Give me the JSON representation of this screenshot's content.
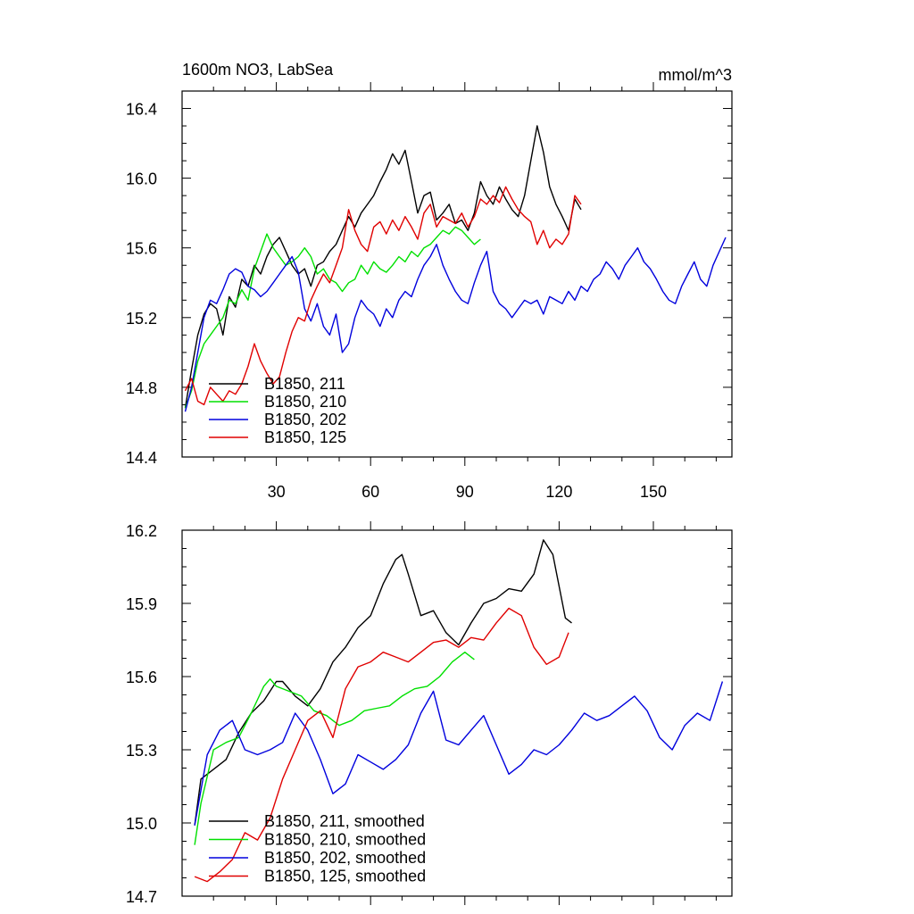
{
  "colors": {
    "b211": "#000000",
    "b210": "#00e000",
    "b202": "#0000dd",
    "b125": "#e00000"
  },
  "chart_data": [
    {
      "type": "line",
      "title_left": "1600m NO3, LabSea",
      "title_right": "mmol/m^3",
      "xlim": [
        0,
        175
      ],
      "ylim": [
        14.4,
        16.5
      ],
      "xticks": [
        30,
        60,
        90,
        120,
        150
      ],
      "xtick_labels": [
        "30",
        "60",
        "90",
        "120",
        "150"
      ],
      "yticks": [
        14.4,
        14.8,
        15.2,
        15.6,
        16.0,
        16.4
      ],
      "ytick_labels": [
        "14.4",
        "14.8",
        "15.2",
        "15.6",
        "16.0",
        "16.4"
      ],
      "legend_position": "bottom-left",
      "series": [
        {
          "name": "B1850, 211",
          "color_key": "b211",
          "x": [
            1,
            3,
            5,
            7,
            9,
            11,
            13,
            15,
            17,
            19,
            21,
            23,
            25,
            27,
            29,
            31,
            33,
            35,
            37,
            39,
            41,
            43,
            45,
            47,
            49,
            51,
            53,
            55,
            57,
            59,
            61,
            63,
            65,
            67,
            69,
            71,
            73,
            75,
            77,
            79,
            81,
            83,
            85,
            87,
            89,
            91,
            93,
            95,
            97,
            99,
            101,
            103,
            105,
            107,
            109,
            111,
            113,
            115,
            117,
            119,
            121,
            123,
            125,
            127
          ],
          "values": [
            14.68,
            14.9,
            15.1,
            15.22,
            15.28,
            15.25,
            15.1,
            15.32,
            15.26,
            15.42,
            15.38,
            15.5,
            15.45,
            15.55,
            15.62,
            15.66,
            15.58,
            15.5,
            15.45,
            15.48,
            15.38,
            15.5,
            15.52,
            15.58,
            15.62,
            15.7,
            15.78,
            15.72,
            15.8,
            15.85,
            15.9,
            15.98,
            16.05,
            16.14,
            16.08,
            16.16,
            15.98,
            15.8,
            15.9,
            15.92,
            15.76,
            15.8,
            15.85,
            15.74,
            15.76,
            15.7,
            15.8,
            15.98,
            15.9,
            15.85,
            15.95,
            15.88,
            15.82,
            15.78,
            15.9,
            16.1,
            16.3,
            16.15,
            15.95,
            15.85,
            15.78,
            15.7,
            15.88,
            15.82
          ]
        },
        {
          "name": "B1850, 210",
          "color_key": "b210",
          "x": [
            1,
            3,
            5,
            7,
            9,
            11,
            13,
            15,
            17,
            19,
            21,
            23,
            25,
            27,
            29,
            31,
            33,
            35,
            37,
            39,
            41,
            43,
            45,
            47,
            49,
            51,
            53,
            55,
            57,
            59,
            61,
            63,
            65,
            67,
            69,
            71,
            73,
            75,
            77,
            79,
            81,
            83,
            85,
            87,
            89,
            91,
            93,
            95
          ],
          "values": [
            14.68,
            14.78,
            14.95,
            15.05,
            15.1,
            15.15,
            15.2,
            15.3,
            15.28,
            15.36,
            15.3,
            15.48,
            15.58,
            15.68,
            15.6,
            15.55,
            15.5,
            15.52,
            15.55,
            15.6,
            15.55,
            15.45,
            15.48,
            15.42,
            15.4,
            15.35,
            15.4,
            15.42,
            15.5,
            15.45,
            15.52,
            15.48,
            15.46,
            15.5,
            15.55,
            15.52,
            15.58,
            15.55,
            15.6,
            15.62,
            15.66,
            15.7,
            15.68,
            15.72,
            15.7,
            15.66,
            15.62,
            15.65
          ]
        },
        {
          "name": "B1850, 202",
          "color_key": "b202",
          "x": [
            1,
            3,
            5,
            7,
            9,
            11,
            13,
            15,
            17,
            19,
            21,
            23,
            25,
            27,
            29,
            31,
            33,
            35,
            37,
            39,
            41,
            43,
            45,
            47,
            49,
            51,
            53,
            55,
            57,
            59,
            61,
            63,
            65,
            67,
            69,
            71,
            73,
            75,
            77,
            79,
            81,
            83,
            85,
            87,
            89,
            91,
            93,
            95,
            97,
            99,
            101,
            103,
            105,
            107,
            109,
            111,
            113,
            115,
            117,
            119,
            121,
            123,
            125,
            127,
            129,
            131,
            133,
            135,
            137,
            139,
            141,
            143,
            145,
            147,
            149,
            151,
            153,
            155,
            157,
            159,
            161,
            163,
            165,
            167,
            169,
            171,
            173
          ],
          "values": [
            14.66,
            14.8,
            15.0,
            15.2,
            15.3,
            15.28,
            15.36,
            15.45,
            15.48,
            15.46,
            15.38,
            15.36,
            15.32,
            15.35,
            15.4,
            15.45,
            15.5,
            15.55,
            15.46,
            15.25,
            15.18,
            15.28,
            15.15,
            15.1,
            15.22,
            15.0,
            15.05,
            15.2,
            15.3,
            15.25,
            15.22,
            15.15,
            15.25,
            15.2,
            15.3,
            15.35,
            15.32,
            15.42,
            15.5,
            15.55,
            15.62,
            15.5,
            15.42,
            15.35,
            15.3,
            15.28,
            15.4,
            15.5,
            15.58,
            15.35,
            15.28,
            15.25,
            15.2,
            15.25,
            15.3,
            15.28,
            15.3,
            15.22,
            15.32,
            15.3,
            15.28,
            15.35,
            15.3,
            15.38,
            15.35,
            15.42,
            15.45,
            15.52,
            15.48,
            15.42,
            15.5,
            15.55,
            15.6,
            15.52,
            15.48,
            15.42,
            15.35,
            15.3,
            15.28,
            15.38,
            15.45,
            15.52,
            15.42,
            15.38,
            15.5,
            15.58,
            15.66
          ]
        },
        {
          "name": "B1850, 125",
          "color_key": "b125",
          "x": [
            1,
            3,
            5,
            7,
            9,
            11,
            13,
            15,
            17,
            19,
            21,
            23,
            25,
            27,
            29,
            31,
            33,
            35,
            37,
            39,
            41,
            43,
            45,
            47,
            49,
            51,
            53,
            55,
            57,
            59,
            61,
            63,
            65,
            67,
            69,
            71,
            73,
            75,
            77,
            79,
            81,
            83,
            85,
            87,
            89,
            91,
            93,
            95,
            97,
            99,
            101,
            103,
            105,
            107,
            109,
            111,
            113,
            115,
            117,
            119,
            121,
            123,
            125,
            127
          ],
          "values": [
            14.78,
            14.85,
            14.72,
            14.7,
            14.8,
            14.76,
            14.72,
            14.78,
            14.76,
            14.82,
            14.92,
            15.05,
            14.95,
            14.88,
            14.82,
            14.86,
            15.0,
            15.12,
            15.2,
            15.18,
            15.3,
            15.38,
            15.45,
            15.4,
            15.5,
            15.6,
            15.82,
            15.7,
            15.62,
            15.58,
            15.72,
            15.75,
            15.68,
            15.76,
            15.7,
            15.78,
            15.72,
            15.65,
            15.8,
            15.85,
            15.72,
            15.78,
            15.76,
            15.74,
            15.8,
            15.72,
            15.78,
            15.88,
            15.85,
            15.9,
            15.86,
            15.95,
            15.88,
            15.82,
            15.78,
            15.75,
            15.62,
            15.7,
            15.6,
            15.65,
            15.62,
            15.68,
            15.9,
            15.85
          ]
        }
      ]
    },
    {
      "type": "line",
      "title_left": "",
      "title_right": "",
      "xlim": [
        0,
        175
      ],
      "ylim": [
        14.7,
        16.2
      ],
      "xticks": [
        30,
        60,
        90,
        120,
        150
      ],
      "xtick_labels": [],
      "yticks": [
        14.7,
        15.0,
        15.3,
        15.6,
        15.9,
        16.2
      ],
      "ytick_labels": [
        "14.7",
        "15.0",
        "15.3",
        "15.6",
        "15.9",
        "16.2"
      ],
      "legend_position": "bottom-left",
      "series": [
        {
          "name": "B1850, 211, smoothed",
          "color_key": "b211",
          "x": [
            4,
            6,
            10,
            14,
            18,
            22,
            26,
            30,
            32,
            36,
            40,
            44,
            48,
            52,
            56,
            60,
            64,
            68,
            70,
            72,
            76,
            80,
            84,
            88,
            92,
            96,
            100,
            104,
            108,
            112,
            115,
            118,
            122,
            124
          ],
          "values": [
            14.99,
            15.18,
            15.22,
            15.26,
            15.37,
            15.45,
            15.5,
            15.58,
            15.58,
            15.52,
            15.48,
            15.55,
            15.66,
            15.72,
            15.8,
            15.85,
            15.98,
            16.08,
            16.1,
            16.02,
            15.85,
            15.87,
            15.78,
            15.73,
            15.82,
            15.9,
            15.92,
            15.96,
            15.95,
            16.02,
            16.16,
            16.1,
            15.84,
            15.82
          ]
        },
        {
          "name": "B1850, 210, smoothed",
          "color_key": "b210",
          "x": [
            4,
            6,
            10,
            14,
            18,
            22,
            26,
            28,
            30,
            34,
            38,
            42,
            46,
            50,
            54,
            58,
            62,
            66,
            70,
            74,
            78,
            82,
            86,
            90,
            93
          ],
          "values": [
            14.91,
            15.08,
            15.3,
            15.33,
            15.35,
            15.45,
            15.56,
            15.59,
            15.56,
            15.54,
            15.52,
            15.46,
            15.44,
            15.4,
            15.42,
            15.46,
            15.47,
            15.48,
            15.52,
            15.55,
            15.56,
            15.6,
            15.66,
            15.7,
            15.67
          ]
        },
        {
          "name": "B1850, 202, smoothed",
          "color_key": "b202",
          "x": [
            4,
            8,
            12,
            16,
            20,
            24,
            28,
            32,
            36,
            40,
            44,
            48,
            52,
            56,
            60,
            64,
            68,
            72,
            76,
            80,
            84,
            88,
            92,
            96,
            100,
            104,
            108,
            112,
            116,
            120,
            124,
            128,
            132,
            136,
            140,
            144,
            148,
            152,
            156,
            160,
            164,
            168,
            172
          ],
          "values": [
            14.99,
            15.28,
            15.38,
            15.42,
            15.3,
            15.28,
            15.3,
            15.33,
            15.45,
            15.38,
            15.26,
            15.12,
            15.16,
            15.28,
            15.25,
            15.22,
            15.26,
            15.32,
            15.45,
            15.54,
            15.34,
            15.32,
            15.38,
            15.44,
            15.32,
            15.2,
            15.24,
            15.3,
            15.28,
            15.32,
            15.38,
            15.45,
            15.42,
            15.44,
            15.48,
            15.52,
            15.46,
            15.35,
            15.3,
            15.4,
            15.45,
            15.42,
            15.58
          ]
        },
        {
          "name": "B1850, 125, smoothed",
          "color_key": "b125",
          "x": [
            4,
            8,
            12,
            16,
            20,
            24,
            28,
            32,
            36,
            40,
            44,
            48,
            52,
            56,
            60,
            64,
            68,
            72,
            76,
            80,
            84,
            88,
            92,
            96,
            100,
            104,
            108,
            112,
            116,
            120,
            123
          ],
          "values": [
            14.78,
            14.76,
            14.8,
            14.85,
            14.96,
            14.93,
            15.02,
            15.18,
            15.3,
            15.42,
            15.46,
            15.35,
            15.55,
            15.64,
            15.66,
            15.7,
            15.68,
            15.66,
            15.7,
            15.74,
            15.75,
            15.72,
            15.76,
            15.75,
            15.82,
            15.88,
            15.85,
            15.72,
            15.65,
            15.68,
            15.78
          ]
        }
      ]
    }
  ]
}
